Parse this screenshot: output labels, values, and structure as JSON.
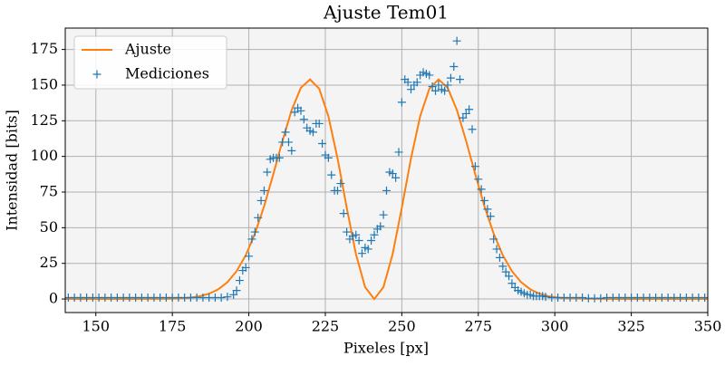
{
  "chart_data": {
    "type": "line",
    "title": "Ajuste Tem01",
    "x_label": "Pixeles [px]",
    "y_label": "Intensidad [bits]",
    "xlim": [
      140,
      350
    ],
    "ylim": [
      -9.5,
      190
    ],
    "xticks": [
      150,
      175,
      200,
      225,
      250,
      275,
      300,
      325,
      350
    ],
    "yticks": [
      0,
      25,
      50,
      75,
      100,
      125,
      150,
      175
    ],
    "grid": true,
    "legend": "upper left",
    "series": [
      {
        "name": "Ajuste",
        "color": "#ff7f0e",
        "style": "line",
        "x": [
          140,
          150,
          160,
          170,
          175,
          178,
          181,
          184,
          187,
          190,
          193,
          196,
          199,
          202,
          205,
          208,
          211,
          214,
          217,
          220,
          223,
          226,
          229,
          232,
          235,
          238,
          241,
          244,
          247,
          250,
          253,
          256,
          259,
          262,
          265,
          268,
          271,
          274,
          277,
          280,
          283,
          286,
          289,
          292,
          295,
          298,
          301,
          304,
          310,
          320,
          330,
          340,
          350
        ],
        "values": [
          0,
          0,
          0,
          0.1,
          0.2,
          0.46,
          0.97,
          1.95,
          3.7,
          6.8,
          11.8,
          19.5,
          30.7,
          45.9,
          65.1,
          87.5,
          111.0,
          132.5,
          148.1,
          154,
          147.5,
          128.2,
          98.6,
          64.0,
          31.5,
          8.37,
          0,
          8.37,
          31.5,
          64.0,
          98.6,
          128.2,
          147.5,
          154,
          148.1,
          132.5,
          111.0,
          87.5,
          65.1,
          45.9,
          30.7,
          19.5,
          11.8,
          6.8,
          3.7,
          1.95,
          0.97,
          0.46,
          0.2,
          0,
          0,
          0,
          0
        ]
      },
      {
        "name": "Mediciones",
        "color": "#1f77b4",
        "style": "marker",
        "x": [
          141,
          143,
          145,
          147,
          149,
          151,
          153,
          155,
          157,
          159,
          161,
          163,
          165,
          167,
          169,
          171,
          173,
          175,
          177,
          179,
          181,
          183,
          185,
          187,
          189,
          191,
          193,
          195,
          196,
          197,
          198,
          199,
          200,
          201,
          202,
          203,
          204,
          205,
          206,
          207,
          208,
          209,
          210,
          211,
          212,
          213,
          214,
          215,
          216,
          217,
          218,
          219,
          220,
          221,
          222,
          223,
          224,
          225,
          226,
          227,
          228,
          229,
          230,
          231,
          232,
          233,
          234,
          235,
          236,
          237,
          238,
          239,
          240,
          241,
          242,
          243,
          244,
          245,
          246,
          247,
          248,
          249,
          250,
          251,
          252,
          253,
          254,
          255,
          256,
          257,
          258,
          259,
          260,
          261,
          262,
          263,
          264,
          265,
          266,
          267,
          268,
          269,
          270,
          271,
          272,
          273,
          274,
          275,
          276,
          277,
          278,
          279,
          280,
          281,
          282,
          283,
          284,
          285,
          286,
          287,
          288,
          289,
          290,
          291,
          292,
          293,
          294,
          295,
          296,
          297,
          299,
          301,
          303,
          305,
          307,
          309,
          311,
          313,
          315,
          317,
          319,
          321,
          323,
          325,
          327,
          329,
          331,
          333,
          335,
          337,
          339,
          341,
          343,
          345,
          347,
          349
        ],
        "values": [
          1,
          1,
          1,
          1,
          1,
          1,
          1,
          1,
          1,
          1,
          1,
          1,
          1,
          1,
          1,
          1,
          1,
          1,
          1,
          1,
          1,
          1,
          1,
          1,
          1,
          1,
          1.5,
          3,
          6,
          13,
          20,
          22,
          30,
          42,
          47,
          57,
          69,
          76,
          89,
          98,
          99,
          99,
          99,
          110,
          117,
          110,
          104,
          131,
          134,
          132,
          126,
          120,
          118,
          117,
          123,
          123,
          109,
          101,
          99,
          87,
          76,
          76,
          81,
          60,
          47,
          42,
          44,
          45,
          41,
          32,
          36,
          35,
          41,
          45,
          49,
          51,
          59,
          76,
          89,
          88,
          85,
          103,
          138,
          154,
          152,
          147,
          150,
          152,
          157,
          159,
          158,
          157,
          149,
          146,
          150,
          147,
          146,
          150,
          155,
          163,
          181,
          154,
          127,
          130,
          133,
          119,
          93,
          84,
          77,
          69,
          63,
          58,
          42,
          35,
          29,
          23,
          19,
          16,
          11,
          8,
          6,
          5,
          4,
          3,
          3,
          2,
          2,
          2,
          2,
          1.5,
          1,
          1,
          1,
          1,
          1,
          1,
          0.5,
          0.5,
          0.5,
          1,
          1,
          1,
          1,
          1,
          1,
          1,
          1,
          1,
          1,
          1,
          1,
          1,
          1,
          1,
          1,
          1
        ]
      }
    ]
  }
}
